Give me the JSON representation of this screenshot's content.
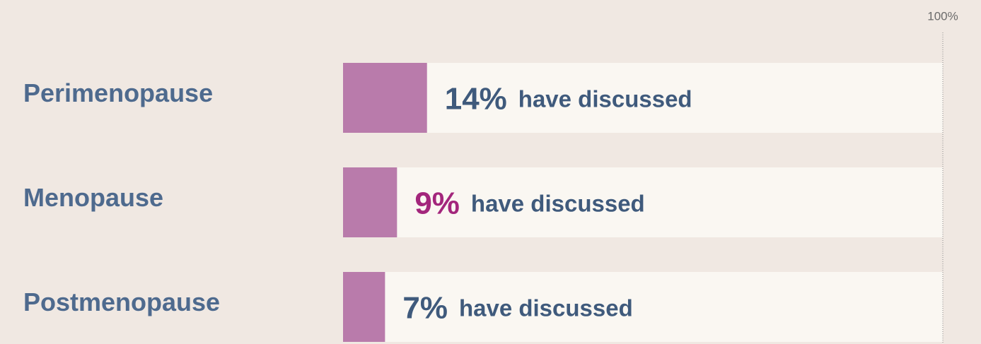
{
  "chart_data": {
    "type": "hbar",
    "categories": [
      "Perimenopause",
      "Menopause",
      "Postmenopause"
    ],
    "values": [
      14,
      9,
      7
    ],
    "value_labels": [
      "14%",
      "9%",
      "7%"
    ],
    "value_notes": [
      "have discussed",
      "have discussed",
      "have discussed"
    ],
    "value_label_colors": [
      "#3f5a7c",
      "#a3267c",
      "#3f5a7c"
    ],
    "color": "#b97bab",
    "track_color": "#faf7f2",
    "xlim": [
      0,
      100
    ],
    "xticks": [
      {
        "value": 100,
        "label": "100%"
      }
    ]
  }
}
